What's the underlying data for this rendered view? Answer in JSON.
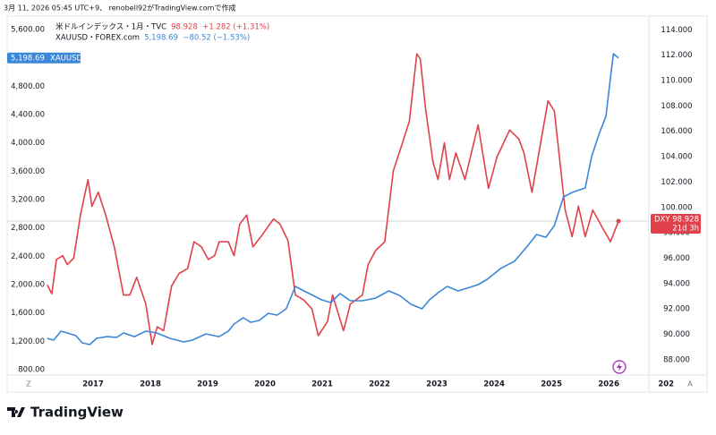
{
  "header": "3月 11, 2026 05:45 UTC+9、 renobell92がTradingView.comで作成",
  "footer": {
    "logo": "TradingView"
  },
  "corner_left": "Z",
  "corner_right": "A",
  "chart_data": {
    "type": "line",
    "xlim": [
      2015.5,
      2026.7
    ],
    "xticks": [
      2017,
      2018,
      2019,
      2020,
      2021,
      2022,
      2023,
      2024,
      2025,
      2026,
      {
        "value": 2027,
        "label": "202"
      }
    ],
    "ylim": [
      510,
      5865
    ],
    "yticks": [
      {
        "value": 800,
        "label": "800.00"
      },
      {
        "value": 1200,
        "label": "1,200.00"
      },
      {
        "value": 1600,
        "label": "1,600.00"
      },
      {
        "value": 2000,
        "label": "2,000.00"
      },
      {
        "value": 2400,
        "label": "2,400.00"
      },
      {
        "value": 2800,
        "label": "2,800.00"
      },
      {
        "value": 3200,
        "label": "3,200.00"
      },
      {
        "value": 3600,
        "label": "3,600.00"
      },
      {
        "value": 4000,
        "label": "4,000.00"
      },
      {
        "value": 4400,
        "label": "4,400.00"
      },
      {
        "value": 4800,
        "label": "4,800.00"
      },
      {
        "value": 5200,
        "label": "5,200.00"
      },
      {
        "value": 5600,
        "label": "5,600.00"
      }
    ],
    "y2lim": [
      85.6,
      115.5
    ],
    "y2ticks": [
      {
        "value": 88,
        "label": "88.000"
      },
      {
        "value": 90,
        "label": "90.000"
      },
      {
        "value": 92,
        "label": "92.000"
      },
      {
        "value": 94,
        "label": "94.000"
      },
      {
        "value": 96,
        "label": "96.000"
      },
      {
        "value": 98,
        "label": "98.000"
      },
      {
        "value": 100,
        "label": "100.000"
      },
      {
        "value": 102,
        "label": "102.000"
      },
      {
        "value": 104,
        "label": "104.000"
      },
      {
        "value": 106,
        "label": "106.000"
      },
      {
        "value": 108,
        "label": "108.000"
      },
      {
        "value": 110,
        "label": "110.000"
      },
      {
        "value": 112,
        "label": "112.000"
      },
      {
        "value": 114,
        "label": "114.000"
      }
    ],
    "series": [
      {
        "name": "米ドルインデックス・1月・TVC",
        "color": "#e0414b",
        "axis": "y2",
        "legend_values": "98.928  +1.282 (+1.31%)",
        "badge_text": "DXY",
        "last_label": "98.928",
        "badge_note": "21d 3h",
        "x": [
          2016.2,
          2016.28,
          2016.36,
          2016.47,
          2016.55,
          2016.66,
          2016.78,
          2016.91,
          2016.98,
          2017.09,
          2017.22,
          2017.37,
          2017.53,
          2017.64,
          2017.76,
          2017.92,
          2018.03,
          2018.12,
          2018.23,
          2018.37,
          2018.5,
          2018.65,
          2018.76,
          2018.89,
          2019.01,
          2019.12,
          2019.2,
          2019.36,
          2019.46,
          2019.56,
          2019.68,
          2019.79,
          2019.93,
          2020.15,
          2020.26,
          2020.4,
          2020.53,
          2020.68,
          2020.82,
          2020.93,
          2021.09,
          2021.18,
          2021.37,
          2021.49,
          2021.7,
          2021.8,
          2021.93,
          2022.09,
          2022.24,
          2022.4,
          2022.52,
          2022.65,
          2022.71,
          2022.8,
          2022.93,
          2023.02,
          2023.13,
          2023.22,
          2023.33,
          2023.49,
          2023.72,
          2023.9,
          2024.05,
          2024.27,
          2024.43,
          2024.52,
          2024.66,
          2024.94,
          2025.05,
          2025.24,
          2025.36,
          2025.47,
          2025.59,
          2025.72,
          2025.89,
          2026.03,
          2026.17
        ],
        "values": [
          93.9,
          93.2,
          95.9,
          96.2,
          95.5,
          96.0,
          99.4,
          102.2,
          100.1,
          101.2,
          99.4,
          96.9,
          93.1,
          93.1,
          94.5,
          92.4,
          89.2,
          90.6,
          90.3,
          93.8,
          94.8,
          95.2,
          97.3,
          96.9,
          95.9,
          96.2,
          97.3,
          97.3,
          96.2,
          98.7,
          99.4,
          96.9,
          97.7,
          99.1,
          98.7,
          97.4,
          93.1,
          92.7,
          92.0,
          89.9,
          91.0,
          93.1,
          90.3,
          92.4,
          93.1,
          95.5,
          96.6,
          97.3,
          102.9,
          105.1,
          106.8,
          112.1,
          111.7,
          107.9,
          103.6,
          102.2,
          105.1,
          102.2,
          104.3,
          102.2,
          106.5,
          101.5,
          104.0,
          106.1,
          105.4,
          104.3,
          101.2,
          108.4,
          107.6,
          99.8,
          97.7,
          100.1,
          97.7,
          99.8,
          98.4,
          97.3,
          98.928
        ]
      },
      {
        "name": "XAUUSD・FOREX.com",
        "color": "#3a86d8",
        "legend_values": "5,198.69  −80.52 (−1.53%)",
        "badge_text": "XAUUSD",
        "last_label": "5,198.69",
        "x": [
          2016.2,
          2016.31,
          2016.44,
          2016.55,
          2016.7,
          2016.81,
          2016.94,
          2017.06,
          2017.25,
          2017.41,
          2017.53,
          2017.72,
          2017.92,
          2018.11,
          2018.34,
          2018.58,
          2018.73,
          2018.97,
          2019.2,
          2019.36,
          2019.46,
          2019.62,
          2019.75,
          2019.9,
          2020.06,
          2020.21,
          2020.37,
          2020.53,
          2020.68,
          2020.84,
          2020.99,
          2021.15,
          2021.31,
          2021.49,
          2021.7,
          2021.93,
          2022.16,
          2022.35,
          2022.55,
          2022.74,
          2022.87,
          2023.02,
          2023.18,
          2023.37,
          2023.52,
          2023.72,
          2023.88,
          2024.11,
          2024.35,
          2024.58,
          2024.74,
          2024.9,
          2025.05,
          2025.21,
          2025.36,
          2025.59,
          2025.7,
          2025.83,
          2025.95,
          2026.08,
          2026.17
        ],
        "values": [
          1242,
          1217,
          1343,
          1318,
          1280,
          1179,
          1154,
          1242,
          1267,
          1255,
          1318,
          1267,
          1343,
          1318,
          1242,
          1192,
          1217,
          1305,
          1267,
          1343,
          1444,
          1533,
          1469,
          1495,
          1596,
          1570,
          1659,
          1975,
          1912,
          1848,
          1785,
          1747,
          1874,
          1773,
          1773,
          1810,
          1912,
          1848,
          1722,
          1659,
          1785,
          1886,
          1975,
          1912,
          1949,
          2000,
          2076,
          2227,
          2328,
          2543,
          2707,
          2669,
          2834,
          3238,
          3301,
          3364,
          3806,
          4122,
          4374,
          5259,
          5198.69
        ]
      }
    ]
  }
}
